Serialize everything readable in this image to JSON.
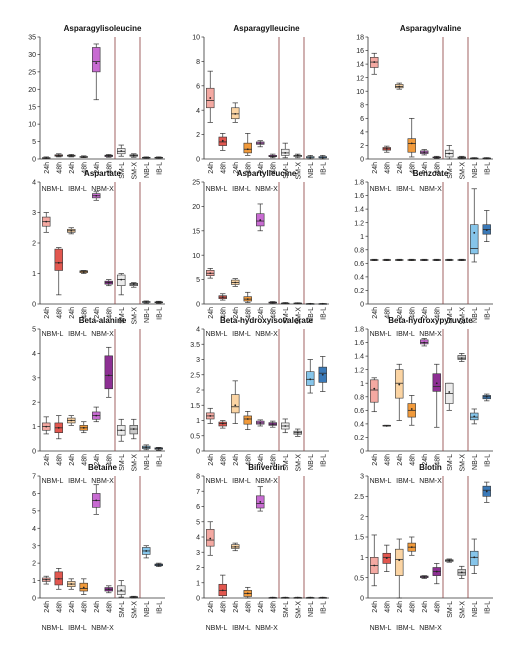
{
  "figure": {
    "conditions": [
      "24h",
      "48h",
      "24h",
      "48h",
      "24h",
      "48h",
      "SM-L",
      "SM-X",
      "NB-L",
      "IB-L"
    ],
    "groups": [
      "NBM-L",
      "IBM-L",
      "NBM-X"
    ],
    "colors": {
      "NBM-L-24h": "#f4a9a2",
      "NBM-L-48h": "#e2574f",
      "IBM-L-24h": "#fbd4a3",
      "IBM-L-48h": "#f19a3b",
      "NBM-X-24h": "#c86bd2",
      "NBM-X-48h": "#8d2f93",
      "SM-L": "#ebebeb",
      "SM-X": "#c9c9c9",
      "NB-L": "#86c5ea",
      "IB-L": "#3a79b8",
      "median": "#2b2b2b",
      "mean": "#222222",
      "separator": "#8a3b3b"
    }
  },
  "chart_data": [
    {
      "type": "box",
      "title": "Asparagylisoleucine",
      "ylim": [
        0,
        35
      ],
      "yticks": [
        0,
        5,
        10,
        15,
        20,
        25,
        30,
        35
      ],
      "boxes": [
        [
          0.1,
          0.2,
          0.3,
          0.4,
          0.6,
          0.3
        ],
        [
          0.6,
          0.8,
          1.0,
          1.2,
          1.5,
          1.0
        ],
        [
          0.6,
          0.8,
          1.0,
          1.1,
          1.3,
          1.0
        ],
        [
          0.4,
          0.5,
          0.6,
          0.7,
          0.9,
          0.6
        ],
        [
          17,
          25,
          28,
          32,
          33,
          27.5
        ],
        [
          0.5,
          0.7,
          0.9,
          1.1,
          1.3,
          0.9
        ],
        [
          0.8,
          1.5,
          2.2,
          3.0,
          4.0,
          2.3
        ],
        [
          0.5,
          0.8,
          1.0,
          1.2,
          1.5,
          1.0
        ],
        [
          0.2,
          0.3,
          0.4,
          0.5,
          0.6,
          0.4
        ],
        [
          0.2,
          0.3,
          0.4,
          0.5,
          0.6,
          0.4
        ]
      ]
    },
    {
      "type": "box",
      "title": "Asparagylleucine",
      "ylim": [
        0,
        10
      ],
      "yticks": [
        0,
        2,
        4,
        6,
        8,
        10
      ],
      "boxes": [
        [
          3.0,
          4.2,
          4.8,
          5.8,
          7.2,
          5.0
        ],
        [
          0.7,
          1.1,
          1.4,
          1.8,
          2.1,
          1.5
        ],
        [
          3.0,
          3.3,
          3.7,
          4.2,
          4.6,
          3.7
        ],
        [
          0.3,
          0.5,
          0.8,
          1.3,
          2.1,
          0.8
        ],
        [
          1.0,
          1.2,
          1.3,
          1.4,
          1.5,
          1.3
        ],
        [
          0.1,
          0.2,
          0.2,
          0.3,
          0.4,
          0.2
        ],
        [
          0.1,
          0.3,
          0.5,
          0.8,
          1.3,
          0.5
        ],
        [
          0.1,
          0.2,
          0.3,
          0.3,
          0.4,
          0.3
        ],
        [
          0.0,
          0.1,
          0.1,
          0.2,
          0.3,
          0.1
        ],
        [
          0.0,
          0.1,
          0.1,
          0.2,
          0.3,
          0.1
        ]
      ]
    },
    {
      "type": "box",
      "title": "Asparagylvaline",
      "ylim": [
        0,
        18
      ],
      "yticks": [
        0,
        2,
        4,
        6,
        8,
        10,
        12,
        14,
        16,
        18
      ],
      "boxes": [
        [
          12.5,
          13.5,
          14.3,
          15.0,
          15.6,
          14.3
        ],
        [
          1.0,
          1.3,
          1.5,
          1.7,
          1.9,
          1.5
        ],
        [
          10.3,
          10.5,
          10.7,
          11.0,
          11.2,
          10.7
        ],
        [
          0.3,
          1.0,
          2.3,
          3.0,
          6.0,
          2.3
        ],
        [
          0.6,
          0.8,
          1.0,
          1.2,
          1.4,
          1.0
        ],
        [
          0.1,
          0.2,
          0.2,
          0.3,
          0.4,
          0.2
        ],
        [
          0.0,
          0.3,
          0.8,
          1.3,
          2.0,
          0.8
        ],
        [
          0.0,
          0.1,
          0.2,
          0.3,
          0.4,
          0.2
        ],
        [
          0.0,
          0.05,
          0.1,
          0.15,
          0.2,
          0.1
        ],
        [
          0.0,
          0.05,
          0.1,
          0.15,
          0.2,
          0.1
        ]
      ]
    },
    {
      "type": "box",
      "title": "Aspartate",
      "ylim": [
        0,
        4
      ],
      "yticks": [
        0,
        1,
        2,
        3,
        4
      ],
      "boxes": [
        [
          2.35,
          2.55,
          2.7,
          2.85,
          3.0,
          2.7
        ],
        [
          0.3,
          1.1,
          1.35,
          1.8,
          1.85,
          1.35
        ],
        [
          2.3,
          2.35,
          2.4,
          2.45,
          2.5,
          2.4
        ],
        [
          1.0,
          1.03,
          1.06,
          1.09,
          1.1,
          1.05
        ],
        [
          3.4,
          3.48,
          3.55,
          3.62,
          3.68,
          3.55
        ],
        [
          0.6,
          0.65,
          0.7,
          0.75,
          0.8,
          0.7
        ],
        [
          0.3,
          0.6,
          0.8,
          0.95,
          1.0,
          0.8
        ],
        [
          0.55,
          0.6,
          0.65,
          0.68,
          0.7,
          0.65
        ],
        [
          0.03,
          0.05,
          0.07,
          0.08,
          0.1,
          0.07
        ],
        [
          0.02,
          0.04,
          0.06,
          0.07,
          0.09,
          0.06
        ]
      ]
    },
    {
      "type": "box",
      "title": "Aspartylleucine",
      "ylim": [
        0,
        25
      ],
      "yticks": [
        0,
        5,
        10,
        15,
        20,
        25
      ],
      "boxes": [
        [
          5.3,
          5.8,
          6.3,
          6.9,
          7.3,
          6.3
        ],
        [
          0.8,
          1.1,
          1.4,
          1.7,
          2.1,
          1.4
        ],
        [
          3.6,
          4.0,
          4.4,
          4.9,
          5.2,
          4.4
        ],
        [
          0.3,
          0.6,
          1.0,
          1.5,
          2.4,
          1.0
        ],
        [
          15,
          16,
          17,
          18.5,
          20.5,
          17.2
        ],
        [
          0.1,
          0.2,
          0.3,
          0.4,
          0.5,
          0.3
        ],
        [
          0.05,
          0.1,
          0.15,
          0.2,
          0.3,
          0.15
        ],
        [
          0.05,
          0.1,
          0.15,
          0.2,
          0.25,
          0.15
        ],
        [
          0.0,
          0.02,
          0.05,
          0.08,
          0.1,
          0.05
        ],
        [
          0.0,
          0.02,
          0.05,
          0.08,
          0.1,
          0.05
        ]
      ]
    },
    {
      "type": "box",
      "title": "Benzoate",
      "ylim": [
        0,
        1.8
      ],
      "yticks": [
        0,
        0.2,
        0.4,
        0.6,
        0.8,
        1.0,
        1.2,
        1.4,
        1.6,
        1.8
      ],
      "boxes": [
        [
          0.64,
          0.645,
          0.65,
          0.655,
          0.66,
          0.65
        ],
        [
          0.64,
          0.645,
          0.65,
          0.655,
          0.66,
          0.65
        ],
        [
          0.64,
          0.645,
          0.65,
          0.655,
          0.66,
          0.65
        ],
        [
          0.64,
          0.645,
          0.65,
          0.655,
          0.66,
          0.65
        ],
        [
          0.64,
          0.645,
          0.65,
          0.655,
          0.66,
          0.65
        ],
        [
          0.64,
          0.645,
          0.65,
          0.655,
          0.66,
          0.65
        ],
        [
          0.64,
          0.645,
          0.65,
          0.655,
          0.66,
          0.65
        ],
        [
          0.64,
          0.645,
          0.65,
          0.655,
          0.66,
          0.65
        ],
        [
          0.62,
          0.74,
          0.82,
          1.17,
          1.7,
          1.05
        ],
        [
          0.92,
          1.03,
          1.1,
          1.17,
          1.38,
          1.09
        ]
      ]
    },
    {
      "type": "box",
      "title": "Beta-alanine",
      "ylim": [
        0,
        5
      ],
      "yticks": [
        0,
        1,
        2,
        3,
        4,
        5
      ],
      "boxes": [
        [
          0.7,
          0.85,
          1.0,
          1.15,
          1.4,
          1.0
        ],
        [
          0.5,
          0.75,
          0.95,
          1.15,
          1.45,
          0.95
        ],
        [
          1.05,
          1.15,
          1.25,
          1.35,
          1.45,
          1.25
        ],
        [
          0.75,
          0.85,
          0.95,
          1.05,
          1.2,
          0.95
        ],
        [
          1.2,
          1.3,
          1.45,
          1.6,
          1.8,
          1.45
        ],
        [
          2.2,
          2.55,
          3.1,
          3.9,
          4.25,
          3.1
        ],
        [
          0.4,
          0.65,
          0.85,
          1.05,
          1.3,
          0.85
        ],
        [
          0.5,
          0.7,
          0.9,
          1.05,
          1.3,
          0.9
        ],
        [
          0.05,
          0.1,
          0.15,
          0.2,
          0.25,
          0.15
        ],
        [
          0.03,
          0.07,
          0.1,
          0.13,
          0.15,
          0.1
        ]
      ]
    },
    {
      "type": "box",
      "title": "Beta-hydroxyisovalerate",
      "ylim": [
        0,
        4
      ],
      "yticks": [
        0,
        0.5,
        1.0,
        1.5,
        2.0,
        2.5,
        3.0,
        3.5,
        4.0
      ],
      "boxes": [
        [
          0.9,
          1.05,
          1.15,
          1.25,
          1.4,
          1.15
        ],
        [
          0.75,
          0.82,
          0.9,
          0.95,
          1.0,
          0.9
        ],
        [
          0.9,
          1.25,
          1.45,
          1.85,
          2.3,
          1.5
        ],
        [
          0.7,
          0.88,
          1.05,
          1.15,
          1.3,
          1.05
        ],
        [
          0.82,
          0.88,
          0.92,
          0.98,
          1.02,
          0.92
        ],
        [
          0.78,
          0.84,
          0.88,
          0.93,
          0.98,
          0.88
        ],
        [
          0.6,
          0.72,
          0.82,
          0.92,
          1.05,
          0.82
        ],
        [
          0.48,
          0.55,
          0.6,
          0.65,
          0.72,
          0.6
        ],
        [
          1.9,
          2.15,
          2.35,
          2.6,
          3.0,
          2.35
        ],
        [
          1.95,
          2.25,
          2.55,
          2.75,
          3.1,
          2.5
        ]
      ]
    },
    {
      "type": "box",
      "title": "Beta-hydroxypyruvate",
      "ylim": [
        0,
        1.8
      ],
      "yticks": [
        0,
        0.2,
        0.4,
        0.6,
        0.8,
        1.0,
        1.2,
        1.4,
        1.6,
        1.8
      ],
      "boxes": [
        [
          0.58,
          0.72,
          0.9,
          1.05,
          1.08,
          0.92
        ],
        [
          0.37,
          0.37,
          0.37,
          0.38,
          0.38,
          0.37
        ],
        [
          0.45,
          0.78,
          1.0,
          1.2,
          1.28,
          0.98
        ],
        [
          0.38,
          0.5,
          0.6,
          0.7,
          0.82,
          0.62
        ],
        [
          1.55,
          1.58,
          1.6,
          1.64,
          1.66,
          1.6
        ],
        [
          0.35,
          0.88,
          0.95,
          1.14,
          1.28,
          1.0
        ],
        [
          0.6,
          0.7,
          0.85,
          1.0,
          1.0,
          0.87
        ],
        [
          1.32,
          1.35,
          1.37,
          1.41,
          1.44,
          1.37
        ],
        [
          0.4,
          0.46,
          0.5,
          0.56,
          0.62,
          0.51
        ],
        [
          0.74,
          0.77,
          0.8,
          0.82,
          0.84,
          0.8
        ]
      ]
    },
    {
      "type": "box",
      "title": "Betaine",
      "ylim": [
        0,
        7
      ],
      "yticks": [
        0,
        1,
        2,
        3,
        4,
        5,
        6,
        7
      ],
      "boxes": [
        [
          0.8,
          0.95,
          1.05,
          1.15,
          1.25,
          1.05
        ],
        [
          0.5,
          0.75,
          1.1,
          1.5,
          1.7,
          1.1
        ],
        [
          0.5,
          0.65,
          0.8,
          0.95,
          1.1,
          0.8
        ],
        [
          0.2,
          0.4,
          0.55,
          0.85,
          1.1,
          0.6
        ],
        [
          4.8,
          5.2,
          5.6,
          6.0,
          6.5,
          5.6
        ],
        [
          0.3,
          0.4,
          0.5,
          0.6,
          0.7,
          0.5
        ],
        [
          0.05,
          0.2,
          0.4,
          0.7,
          1.0,
          0.45
        ],
        [
          0.0,
          0.02,
          0.05,
          0.08,
          0.1,
          0.05
        ],
        [
          2.3,
          2.5,
          2.7,
          2.9,
          3.0,
          2.7
        ],
        [
          1.8,
          1.85,
          1.9,
          1.95,
          2.0,
          1.9
        ]
      ]
    },
    {
      "type": "box",
      "title": "Biliverdin",
      "ylim": [
        0,
        8
      ],
      "yticks": [
        0,
        1,
        2,
        3,
        4,
        5,
        6,
        7,
        8
      ],
      "boxes": [
        [
          2.8,
          3.4,
          3.8,
          4.5,
          5.0,
          3.9
        ],
        [
          0.0,
          0.15,
          0.5,
          0.9,
          1.5,
          0.5
        ],
        [
          3.1,
          3.25,
          3.35,
          3.5,
          3.6,
          3.35
        ],
        [
          0.0,
          0.1,
          0.3,
          0.5,
          0.7,
          0.3
        ],
        [
          5.7,
          5.9,
          6.2,
          6.7,
          7.3,
          6.3
        ],
        [
          0.0,
          0.01,
          0.02,
          0.03,
          0.05,
          0.02
        ],
        [
          0.0,
          0.01,
          0.02,
          0.03,
          0.05,
          0.02
        ],
        [
          0.0,
          0.01,
          0.02,
          0.03,
          0.05,
          0.02
        ],
        [
          0.0,
          0.01,
          0.02,
          0.03,
          0.05,
          0.02
        ],
        [
          0.0,
          0.01,
          0.02,
          0.03,
          0.05,
          0.02
        ]
      ]
    },
    {
      "type": "box",
      "title": "Biotin",
      "ylim": [
        0,
        3.0
      ],
      "yticks": [
        0,
        0.5,
        1.0,
        1.5,
        2.0,
        2.5,
        3.0
      ],
      "boxes": [
        [
          0.3,
          0.6,
          0.8,
          1.0,
          1.55,
          0.8
        ],
        [
          0.65,
          0.85,
          1.0,
          1.1,
          1.3,
          0.98
        ],
        [
          0.0,
          0.55,
          0.95,
          1.2,
          1.45,
          0.93
        ],
        [
          1.05,
          1.15,
          1.25,
          1.35,
          1.5,
          1.25
        ],
        [
          0.48,
          0.5,
          0.52,
          0.54,
          0.55,
          0.52
        ],
        [
          0.35,
          0.55,
          0.65,
          0.75,
          0.85,
          0.65
        ],
        [
          0.88,
          0.9,
          0.92,
          0.94,
          0.96,
          0.92
        ],
        [
          0.48,
          0.56,
          0.62,
          0.7,
          0.78,
          0.63
        ],
        [
          0.6,
          0.8,
          1.0,
          1.15,
          1.45,
          1.0
        ],
        [
          2.35,
          2.5,
          2.65,
          2.75,
          2.85,
          2.62
        ]
      ]
    }
  ]
}
